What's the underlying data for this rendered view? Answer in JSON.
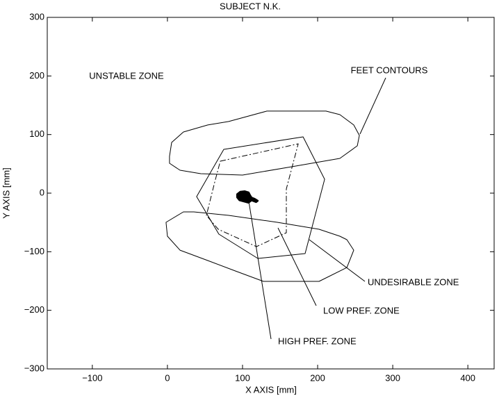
{
  "chart_data": {
    "type": "line",
    "title": "SUBJECT N.K.",
    "x_label": "X AXIS [mm]",
    "y_label": "Y AXIS [mm]",
    "xlim": [
      -160,
      435
    ],
    "ylim": [
      -300,
      300
    ],
    "xticks": [
      {
        "value": -100,
        "label": "−100"
      },
      0,
      100,
      200,
      300,
      400
    ],
    "yticks": [
      {
        "value": -300,
        "label": "−300"
      },
      {
        "value": -200,
        "label": "−200"
      },
      {
        "value": -100,
        "label": "−100"
      },
      0,
      100,
      200,
      300
    ],
    "grid": false,
    "series": [
      {
        "color": "#000000",
        "style": "solid",
        "x": [
          2.8,
          5.6,
          21.3,
          53.7,
          81.5,
          132.4,
          211.1,
          229.6,
          248.1,
          255.6,
          252.8,
          229.6,
          164.8,
          100,
          44.4,
          16.7,
          2.8
        ],
        "y": [
          62.9,
          86.6,
          104.4,
          116.3,
          122.2,
          140,
          140,
          134,
          116.3,
          98.5,
          80.7,
          59.3,
          45,
          30.8,
          33.2,
          39.1,
          51
        ]
      },
      {
        "color": "#000000",
        "style": "solid",
        "x": [
          21.3,
          -1.9,
          0,
          16.7,
          53.7,
          90.7,
          127.8,
          201.9,
          238.9,
          248.1,
          238.9,
          229.6,
          201.9,
          146.3,
          81.5,
          35.2
        ],
        "y": [
          -32,
          -49.8,
          -73.5,
          -97.3,
          -115,
          -132.9,
          -150.6,
          -150.6,
          -127,
          -97.3,
          -79.5,
          -73.5,
          -61.7,
          -49.8,
          -38,
          -32
        ]
      },
      {
        "color": "#000000",
        "style": "solid",
        "x": [
          75,
          180.6,
          209.3,
          183.3,
          120.4,
          68.5,
          38.9
        ],
        "y": [
          74.7,
          96.1,
          23.7,
          -103.2,
          -111.5,
          -70,
          -5.9
        ]
      },
      {
        "color": "#000000",
        "style": "dashdot",
        "x": [
          70.4,
          174.1,
          158.3,
          158.3,
          118.5,
          67.6,
          51.9,
          63
        ],
        "y": [
          54.6,
          84.2,
          7.1,
          -67.6,
          -91.3,
          -61.7,
          -38,
          19
        ]
      },
      {
        "color": "#000000",
        "style": "filled",
        "x": [
          93,
          97,
          103,
          108,
          110,
          112,
          116,
          120,
          118,
          112,
          108,
          102,
          96,
          93
        ],
        "y": [
          -2,
          2,
          3,
          1,
          -4,
          -8,
          -10,
          -13,
          -15,
          -12,
          -16,
          -14,
          -12,
          -7
        ]
      }
    ],
    "annotations": [
      "UNSTABLE ZONE",
      "FEET CONTOURS",
      "UNDESIRABLE ZONE",
      "LOW PREF. ZONE",
      "HIGH PREF. ZONE"
    ]
  }
}
